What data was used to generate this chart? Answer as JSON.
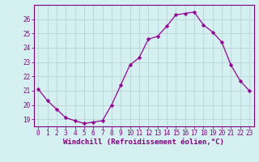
{
  "x": [
    0,
    1,
    2,
    3,
    4,
    5,
    6,
    7,
    8,
    9,
    10,
    11,
    12,
    13,
    14,
    15,
    16,
    17,
    18,
    19,
    20,
    21,
    22,
    23
  ],
  "y": [
    21.1,
    20.3,
    19.7,
    19.1,
    18.9,
    18.7,
    18.8,
    18.9,
    20.0,
    21.4,
    22.8,
    23.3,
    24.6,
    24.8,
    25.5,
    26.3,
    26.4,
    26.5,
    25.6,
    25.1,
    24.4,
    22.8,
    21.7,
    21.0
  ],
  "line_color": "#990099",
  "marker": "D",
  "marker_size": 2.2,
  "bg_color": "#d4f0f0",
  "grid_color": "#b8d4d4",
  "xlabel": "Windchill (Refroidissement éolien,°C)",
  "ylim_min": 18.5,
  "ylim_max": 27.0,
  "yticks": [
    19,
    20,
    21,
    22,
    23,
    24,
    25,
    26
  ],
  "xticks": [
    0,
    1,
    2,
    3,
    4,
    5,
    6,
    7,
    8,
    9,
    10,
    11,
    12,
    13,
    14,
    15,
    16,
    17,
    18,
    19,
    20,
    21,
    22,
    23
  ],
  "label_color": "#800080",
  "tick_color": "#800080",
  "axis_color": "#800080",
  "tick_fontsize": 5.5,
  "label_fontsize": 6.5
}
